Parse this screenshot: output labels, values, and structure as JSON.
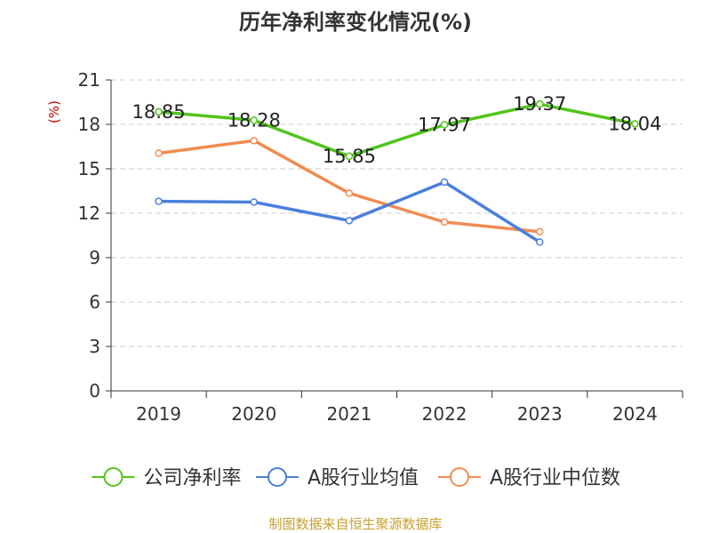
{
  "chart_data": {
    "type": "line",
    "title": "历年净利率变化情况(%)",
    "ylabel": "(%)",
    "xlabel": "",
    "categories": [
      "2019",
      "2020",
      "2021",
      "2022",
      "2023",
      "2024"
    ],
    "ylim": [
      0,
      21
    ],
    "yticks": [
      0,
      3,
      6,
      9,
      12,
      15,
      18,
      21
    ],
    "grid": true,
    "legend_position": "bottom",
    "series": [
      {
        "name": "公司净利率",
        "color": "#52c41a",
        "values": [
          18.85,
          18.28,
          15.85,
          17.97,
          19.37,
          18.04
        ],
        "labels": [
          "18.85",
          "18.28",
          "15.85",
          "17.97",
          "19.37",
          "18.04"
        ]
      },
      {
        "name": "A股行业均值",
        "color": "#4a7fdc",
        "values": [
          12.8,
          12.75,
          11.5,
          14.1,
          10.05,
          null
        ]
      },
      {
        "name": "A股行业中位数",
        "color": "#f28b50",
        "values": [
          16.05,
          16.9,
          13.35,
          11.4,
          10.75,
          null
        ]
      }
    ]
  },
  "footer": {
    "source": "制图数据来自恒生聚源数据库"
  }
}
